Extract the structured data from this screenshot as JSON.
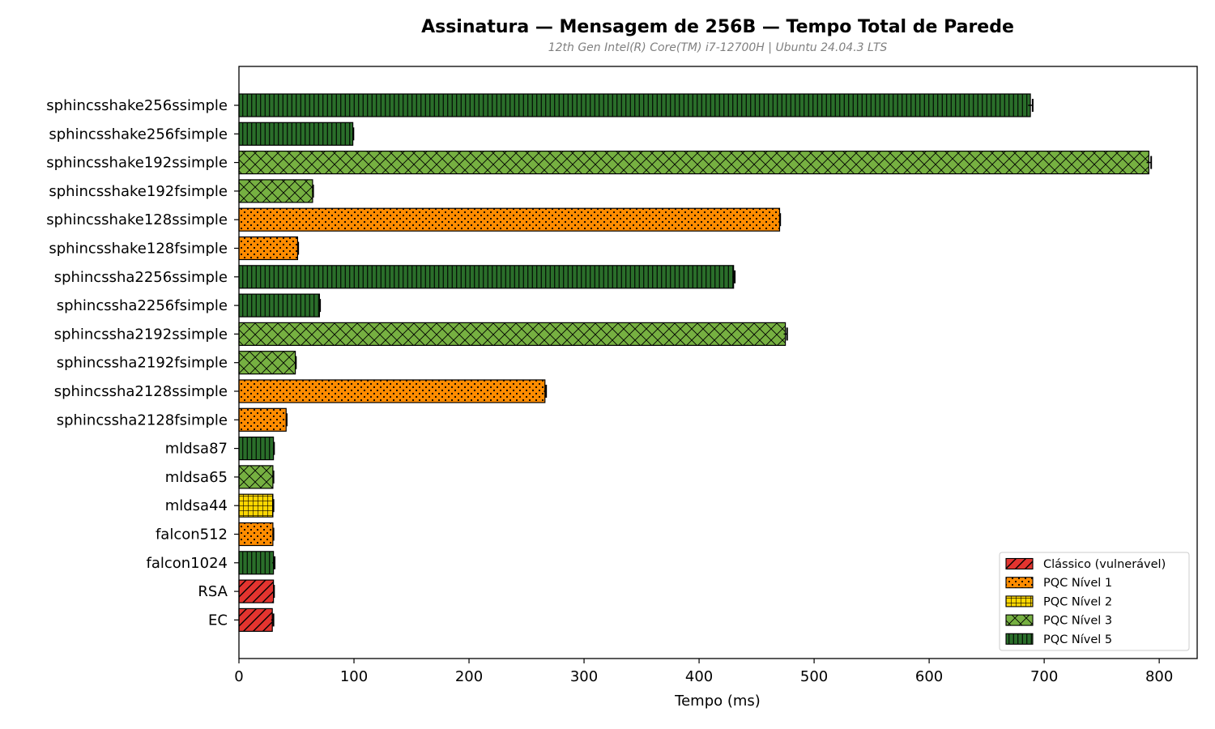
{
  "chart_data": {
    "type": "bar",
    "orientation": "horizontal",
    "title": "Assinatura — Mensagem de 256B — Tempo Total de Parede",
    "subtitle": "12th Gen Intel(R) Core(TM) i7-12700H | Ubuntu 24.04.3 LTS",
    "xlabel": "Tempo (ms)",
    "ylabel": "",
    "xlim": [
      0,
      833
    ],
    "x_ticks": [
      0,
      100,
      200,
      300,
      400,
      500,
      600,
      700,
      800
    ],
    "grid": false,
    "legend_position": "bottom-right",
    "categories": [
      {
        "name": "sphincsshake256ssimple",
        "value": 688,
        "err": 2,
        "group": "PQC Nível 5"
      },
      {
        "name": "sphincsshake256fsimple",
        "value": 99,
        "err": 0.5,
        "group": "PQC Nível 5"
      },
      {
        "name": "sphincsshake192ssimple",
        "value": 791,
        "err": 2,
        "group": "PQC Nível 3"
      },
      {
        "name": "sphincsshake192fsimple",
        "value": 64,
        "err": 0.5,
        "group": "PQC Nível 3"
      },
      {
        "name": "sphincsshake128ssimple",
        "value": 470,
        "err": 0.5,
        "group": "PQC Nível 1"
      },
      {
        "name": "sphincsshake128fsimple",
        "value": 51,
        "err": 0.5,
        "group": "PQC Nível 1"
      },
      {
        "name": "sphincssha2256ssimple",
        "value": 430,
        "err": 1,
        "group": "PQC Nível 5"
      },
      {
        "name": "sphincssha2256fsimple",
        "value": 70,
        "err": 0.5,
        "group": "PQC Nível 5"
      },
      {
        "name": "sphincssha2192ssimple",
        "value": 475,
        "err": 1.5,
        "group": "PQC Nível 3"
      },
      {
        "name": "sphincssha2192fsimple",
        "value": 49,
        "err": 0.5,
        "group": "PQC Nível 3"
      },
      {
        "name": "sphincssha2128ssimple",
        "value": 266,
        "err": 1,
        "group": "PQC Nível 1"
      },
      {
        "name": "sphincssha2128fsimple",
        "value": 41,
        "err": 0.5,
        "group": "PQC Nível 1"
      },
      {
        "name": "mldsa87",
        "value": 30,
        "err": 0.5,
        "group": "PQC Nível 5"
      },
      {
        "name": "mldsa65",
        "value": 29.5,
        "err": 0.5,
        "group": "PQC Nível 3"
      },
      {
        "name": "mldsa44",
        "value": 29.5,
        "err": 0.5,
        "group": "PQC Nível 2"
      },
      {
        "name": "falcon512",
        "value": 29.5,
        "err": 0.5,
        "group": "PQC Nível 1"
      },
      {
        "name": "falcon1024",
        "value": 30,
        "err": 1,
        "group": "PQC Nível 5"
      },
      {
        "name": "RSA",
        "value": 30,
        "err": 0.5,
        "group": "Clássico (vulnerável)"
      },
      {
        "name": "EC",
        "value": 29,
        "err": 1,
        "group": "Clássico (vulnerável)"
      }
    ],
    "legend": [
      {
        "label": "Clássico (vulnerável)",
        "color": "#e3342f",
        "pattern": "diagonal"
      },
      {
        "label": "PQC Nível 1",
        "color": "#ff8c00",
        "pattern": "dots"
      },
      {
        "label": "PQC Nível 2",
        "color": "#ffd700",
        "pattern": "grid"
      },
      {
        "label": "PQC Nível 3",
        "color": "#76b041",
        "pattern": "crosshatch"
      },
      {
        "label": "PQC Nível 5",
        "color": "#2a6e2a",
        "pattern": "vertical"
      }
    ]
  }
}
